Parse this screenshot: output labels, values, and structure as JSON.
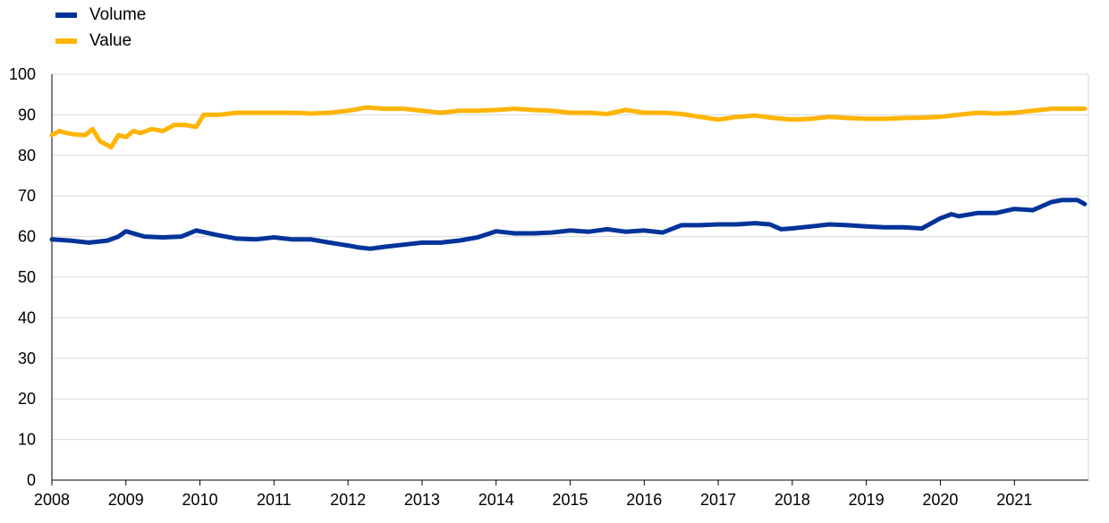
{
  "chart_data": {
    "type": "line",
    "title": "",
    "xlabel": "",
    "ylabel": "",
    "ylim": [
      0,
      100
    ],
    "yticks": [
      "0",
      "10",
      "20",
      "30",
      "40",
      "50",
      "60",
      "70",
      "80",
      "90",
      "100"
    ],
    "xlim": [
      2008,
      2022
    ],
    "xticks": [
      "2008",
      "2009",
      "2010",
      "2011",
      "2012",
      "2013",
      "2014",
      "2015",
      "2016",
      "2017",
      "2018",
      "2019",
      "2020",
      "2021"
    ],
    "grid": true,
    "legend_position": "top-left",
    "series": [
      {
        "name": "Volume",
        "color": "#003399",
        "x": [
          2008.0,
          2008.25,
          2008.5,
          2008.75,
          2008.9,
          2009.0,
          2009.25,
          2009.5,
          2009.75,
          2009.95,
          2010.25,
          2010.5,
          2010.75,
          2011.0,
          2011.25,
          2011.5,
          2011.75,
          2012.0,
          2012.15,
          2012.3,
          2012.5,
          2012.75,
          2013.0,
          2013.25,
          2013.5,
          2013.75,
          2014.0,
          2014.25,
          2014.5,
          2014.75,
          2015.0,
          2015.25,
          2015.5,
          2015.75,
          2016.0,
          2016.25,
          2016.5,
          2016.75,
          2017.0,
          2017.25,
          2017.5,
          2017.7,
          2017.85,
          2018.0,
          2018.25,
          2018.5,
          2018.75,
          2019.0,
          2019.25,
          2019.5,
          2019.75,
          2019.9,
          2020.0,
          2020.15,
          2020.25,
          2020.5,
          2020.75,
          2021.0,
          2021.25,
          2021.5,
          2021.65,
          2021.85,
          2021.95
        ],
        "values": [
          59.3,
          59.0,
          58.5,
          59.0,
          60.0,
          61.3,
          60.0,
          59.8,
          60.0,
          61.5,
          60.3,
          59.5,
          59.3,
          59.8,
          59.3,
          59.3,
          58.5,
          57.8,
          57.3,
          57.0,
          57.5,
          58.0,
          58.5,
          58.5,
          59.0,
          59.8,
          61.3,
          60.8,
          60.8,
          61.0,
          61.5,
          61.2,
          61.8,
          61.2,
          61.5,
          61.0,
          62.8,
          62.8,
          63.0,
          63.0,
          63.3,
          63.0,
          61.8,
          62.0,
          62.5,
          63.0,
          62.8,
          62.5,
          62.3,
          62.3,
          62.0,
          63.5,
          64.5,
          65.5,
          65.0,
          65.8,
          65.8,
          66.8,
          66.5,
          68.5,
          69.0,
          69.0,
          68.0
        ]
      },
      {
        "name": "Value",
        "color": "#FFB400",
        "x": [
          2008.0,
          2008.1,
          2008.2,
          2008.3,
          2008.45,
          2008.55,
          2008.65,
          2008.8,
          2008.9,
          2009.0,
          2009.1,
          2009.2,
          2009.35,
          2009.5,
          2009.65,
          2009.8,
          2009.95,
          2010.05,
          2010.25,
          2010.5,
          2010.75,
          2011.0,
          2011.25,
          2011.5,
          2011.75,
          2012.0,
          2012.25,
          2012.5,
          2012.75,
          2013.0,
          2013.25,
          2013.5,
          2013.75,
          2014.0,
          2014.25,
          2014.5,
          2014.75,
          2015.0,
          2015.25,
          2015.5,
          2015.75,
          2016.0,
          2016.25,
          2016.5,
          2016.75,
          2017.0,
          2017.25,
          2017.5,
          2017.75,
          2018.0,
          2018.25,
          2018.5,
          2018.75,
          2019.0,
          2019.25,
          2019.5,
          2019.75,
          2020.0,
          2020.25,
          2020.5,
          2020.75,
          2021.0,
          2021.25,
          2021.5,
          2021.75,
          2021.95
        ],
        "values": [
          85.0,
          86.0,
          85.5,
          85.2,
          85.0,
          86.5,
          83.5,
          82.0,
          85.0,
          84.5,
          86.0,
          85.5,
          86.5,
          86.0,
          87.5,
          87.5,
          87.0,
          90.0,
          90.0,
          90.5,
          90.5,
          90.5,
          90.5,
          90.3,
          90.5,
          91.0,
          91.8,
          91.5,
          91.5,
          91.0,
          90.5,
          91.0,
          91.0,
          91.2,
          91.5,
          91.2,
          91.0,
          90.5,
          90.5,
          90.2,
          91.2,
          90.5,
          90.5,
          90.2,
          89.5,
          88.8,
          89.5,
          89.8,
          89.2,
          88.8,
          89.0,
          89.5,
          89.2,
          89.0,
          89.0,
          89.2,
          89.3,
          89.5,
          90.0,
          90.5,
          90.3,
          90.5,
          91.0,
          91.5,
          91.5,
          91.5
        ]
      }
    ]
  }
}
